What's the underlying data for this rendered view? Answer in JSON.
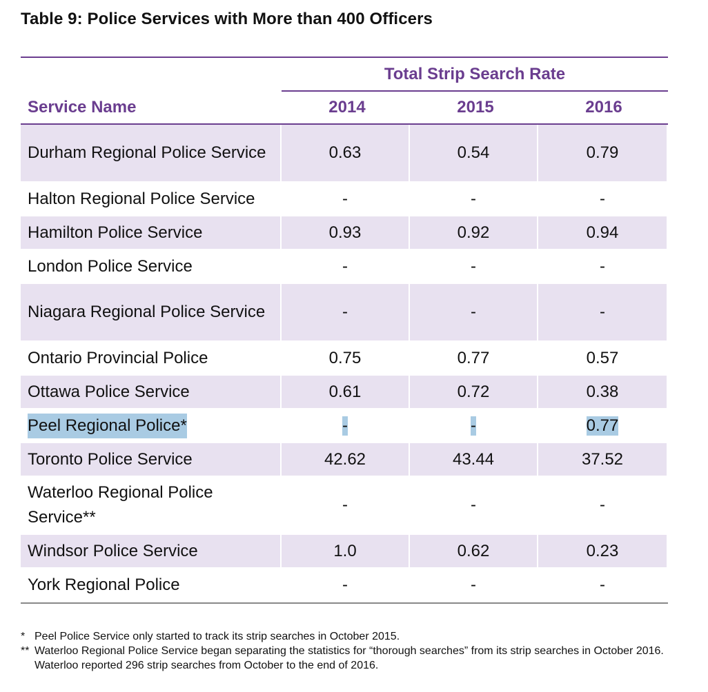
{
  "title": "Table 9: Police Services with More than 400 Officers",
  "table": {
    "group_header": "Total Strip Search Rate",
    "name_header": "Service Name",
    "years": [
      "2014",
      "2015",
      "2016"
    ],
    "rows": [
      {
        "name": "Durham Regional Police Service",
        "values": [
          "0.63",
          "0.54",
          "0.79"
        ],
        "shaded": true,
        "height": 84
      },
      {
        "name": "Halton Regional Police Service",
        "values": [
          "-",
          "-",
          "-"
        ],
        "shaded": false,
        "height": 49
      },
      {
        "name": "Hamilton Police Service",
        "values": [
          "0.93",
          "0.92",
          "0.94"
        ],
        "shaded": true,
        "height": 49
      },
      {
        "name": "London Police Service",
        "values": [
          "-",
          "-",
          "-"
        ],
        "shaded": false,
        "height": 49
      },
      {
        "name": "Niagara Regional Police Service",
        "values": [
          "-",
          "-",
          "-"
        ],
        "shaded": true,
        "height": 84
      },
      {
        "name": "Ontario Provincial Police",
        "values": [
          "0.75",
          "0.77",
          "0.57"
        ],
        "shaded": false,
        "height": 49
      },
      {
        "name": "Ottawa Police Service",
        "values": [
          "0.61",
          "0.72",
          "0.38"
        ],
        "shaded": true,
        "height": 49
      },
      {
        "name": "Peel Regional Police*",
        "values": [
          "-",
          "-",
          "0.77"
        ],
        "shaded": false,
        "height": 49,
        "highlighted": true
      },
      {
        "name": "Toronto Police Service",
        "values": [
          "42.62",
          "43.44",
          "37.52"
        ],
        "shaded": true,
        "height": 49
      },
      {
        "name": "Waterloo Regional Police Service**",
        "values": [
          "-",
          "-",
          "-"
        ],
        "shaded": false,
        "height": 84
      },
      {
        "name": "Windsor Police Service",
        "values": [
          "1.0",
          "0.62",
          "0.23"
        ],
        "shaded": true,
        "height": 49
      },
      {
        "name": "York Regional Police",
        "values": [
          "-",
          "-",
          "-"
        ],
        "shaded": false,
        "height": 49
      }
    ]
  },
  "footnotes": [
    {
      "mark": "*",
      "text": "Peel Police Service only started to track its strip searches in October 2015."
    },
    {
      "mark": "**",
      "text": "Waterloo Regional Police Service began separating the statistics for “thorough searches” from its strip searches in October 2016. Waterloo reported 296 strip searches from October to the end of 2016."
    }
  ],
  "colors": {
    "accent": "#6a3d8f",
    "row_shade": "#e8e1f0",
    "highlight": "#a9cbe3"
  }
}
